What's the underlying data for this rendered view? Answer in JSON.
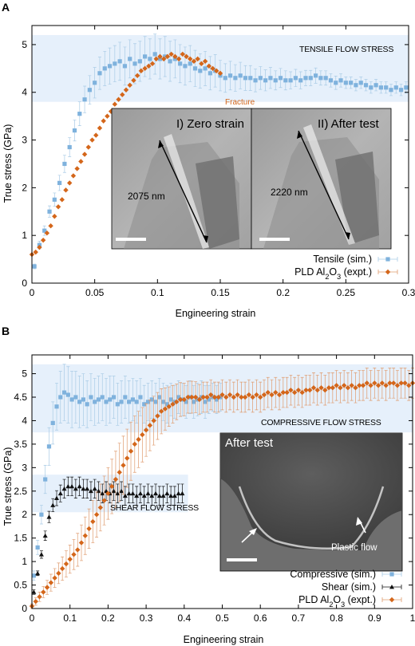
{
  "colors": {
    "sim_blue": "#7fb2dd",
    "sim_blue_err": "#a9cbe6",
    "expt_orange": "#d4661a",
    "expt_orange_err": "#df9b6e",
    "shear_black": "#111111",
    "band": "#e6f0fb"
  },
  "icons": {
    "tensile_marker": "square",
    "expt_marker": "diamond",
    "shear_marker": "triangle"
  },
  "chart_data": [
    {
      "type": "scatter",
      "panel": "A",
      "xlabel": "Engineering strain",
      "ylabel": "True stress (GPa)",
      "xlim": [
        0,
        0.3
      ],
      "ylim": [
        0,
        5.4
      ],
      "xticks": [
        "0",
        "0.05",
        "0.1",
        "0.15",
        "0.2",
        "0.25",
        "0.3"
      ],
      "yticks": [
        "0",
        "1",
        "2",
        "3",
        "4",
        "5"
      ],
      "band": {
        "label": "TENSILE FLOW STRESS",
        "ylow": 3.8,
        "yhigh": 5.2
      },
      "annotation": {
        "text": "Fracture",
        "x": 0.15,
        "y": 3.9
      },
      "legend": [
        "Tensile (sim.)",
        "PLD Al2O3 (expt.)"
      ],
      "legend_placement": "bottom-right",
      "inset": {
        "left_label": "I) Zero strain",
        "right_label": "II) After test",
        "left_length": "2075 nm",
        "right_length": "2220 nm"
      },
      "series": [
        {
          "name": "Tensile (sim.)",
          "marker": "square",
          "x": [
            0.002,
            0.006,
            0.01,
            0.014,
            0.018,
            0.022,
            0.026,
            0.03,
            0.034,
            0.038,
            0.042,
            0.046,
            0.05,
            0.054,
            0.058,
            0.062,
            0.066,
            0.07,
            0.074,
            0.078,
            0.082,
            0.086,
            0.09,
            0.094,
            0.098,
            0.102,
            0.106,
            0.11,
            0.114,
            0.118,
            0.122,
            0.126,
            0.13,
            0.134,
            0.138,
            0.142,
            0.146,
            0.15,
            0.154,
            0.158,
            0.162,
            0.166,
            0.17,
            0.174,
            0.178,
            0.182,
            0.186,
            0.19,
            0.194,
            0.198,
            0.202,
            0.206,
            0.21,
            0.214,
            0.218,
            0.222,
            0.226,
            0.23,
            0.234,
            0.238,
            0.242,
            0.246,
            0.25,
            0.254,
            0.258,
            0.262,
            0.266,
            0.27,
            0.274,
            0.278,
            0.282,
            0.286,
            0.29,
            0.294,
            0.298
          ],
          "y": [
            0.35,
            0.8,
            1.1,
            1.5,
            1.75,
            2.1,
            2.5,
            2.85,
            3.2,
            3.55,
            3.85,
            4.05,
            4.2,
            4.4,
            4.5,
            4.55,
            4.6,
            4.65,
            4.55,
            4.7,
            4.6,
            4.65,
            4.75,
            4.7,
            4.8,
            4.7,
            4.75,
            4.65,
            4.7,
            4.6,
            4.55,
            4.6,
            4.5,
            4.45,
            4.5,
            4.4,
            4.45,
            4.35,
            4.3,
            4.35,
            4.3,
            4.35,
            4.3,
            4.3,
            4.25,
            4.3,
            4.25,
            4.3,
            4.25,
            4.3,
            4.25,
            4.25,
            4.3,
            4.25,
            4.3,
            4.3,
            4.35,
            4.3,
            4.3,
            4.25,
            4.2,
            4.25,
            4.2,
            4.2,
            4.15,
            4.2,
            4.15,
            4.1,
            4.15,
            4.1,
            4.1,
            4.05,
            4.1,
            4.05,
            4.1
          ],
          "err": [
            0.05,
            0.08,
            0.1,
            0.12,
            0.14,
            0.16,
            0.18,
            0.2,
            0.22,
            0.25,
            0.28,
            0.3,
            0.32,
            0.34,
            0.36,
            0.38,
            0.38,
            0.4,
            0.4,
            0.4,
            0.42,
            0.42,
            0.42,
            0.42,
            0.42,
            0.42,
            0.42,
            0.42,
            0.4,
            0.4,
            0.4,
            0.38,
            0.38,
            0.36,
            0.36,
            0.35,
            0.34,
            0.32,
            0.3,
            0.3,
            0.28,
            0.28,
            0.26,
            0.26,
            0.24,
            0.24,
            0.22,
            0.22,
            0.2,
            0.2,
            0.2,
            0.18,
            0.18,
            0.18,
            0.16,
            0.16,
            0.16,
            0.15,
            0.15,
            0.14,
            0.14,
            0.14,
            0.12,
            0.12,
            0.12,
            0.12,
            0.12,
            0.12,
            0.12,
            0.12,
            0.12,
            0.12,
            0.12,
            0.12,
            0.12
          ]
        },
        {
          "name": "PLD Al2O3 (expt.)",
          "marker": "diamond",
          "x": [
            0.0,
            0.003,
            0.006,
            0.009,
            0.012,
            0.015,
            0.018,
            0.021,
            0.024,
            0.027,
            0.03,
            0.033,
            0.036,
            0.039,
            0.042,
            0.045,
            0.048,
            0.051,
            0.054,
            0.057,
            0.06,
            0.063,
            0.066,
            0.069,
            0.072,
            0.075,
            0.078,
            0.081,
            0.084,
            0.087,
            0.09,
            0.093,
            0.096,
            0.099,
            0.102,
            0.105,
            0.108,
            0.111,
            0.114,
            0.117,
            0.12,
            0.123,
            0.126,
            0.129,
            0.132,
            0.135,
            0.138,
            0.141,
            0.144,
            0.147,
            0.15
          ],
          "y": [
            0.6,
            0.65,
            0.75,
            0.9,
            1.05,
            1.2,
            1.4,
            1.6,
            1.75,
            1.95,
            2.1,
            2.25,
            2.4,
            2.55,
            2.7,
            2.85,
            3.0,
            3.1,
            3.25,
            3.4,
            3.5,
            3.6,
            3.75,
            3.85,
            3.95,
            4.05,
            4.15,
            4.25,
            4.35,
            4.45,
            4.5,
            4.55,
            4.6,
            4.7,
            4.75,
            4.7,
            4.75,
            4.8,
            4.75,
            4.7,
            4.8,
            4.75,
            4.7,
            4.65,
            4.7,
            4.6,
            4.65,
            4.55,
            4.5,
            4.45,
            4.4
          ]
        }
      ]
    },
    {
      "type": "scatter",
      "panel": "B",
      "xlabel": "Engineering strain",
      "ylabel": "True stress (GPa)",
      "xlim": [
        0,
        1
      ],
      "ylim": [
        0,
        5.4
      ],
      "xticks": [
        "0",
        "0.1",
        "0.2",
        "0.3",
        "0.4",
        "0.5",
        "0.6",
        "0.7",
        "0.8",
        "0.9",
        "1"
      ],
      "yticks": [
        "0",
        "0.5",
        "1",
        "1.5",
        "2",
        "2.5",
        "3",
        "3.5",
        "4",
        "4.5",
        "5"
      ],
      "bands": [
        {
          "label": "COMPRESSIVE FLOW STRESS",
          "ylow": 3.75,
          "yhigh": 5.2,
          "xmin": 0.0,
          "xmax": 1.0
        },
        {
          "label": "SHEAR FLOW STRESS",
          "ylow": 2.05,
          "yhigh": 2.85,
          "xmin": 0.0,
          "xmax": 0.41
        }
      ],
      "legend": [
        "Compressive (sim.)",
        "Shear (sim.)",
        "PLD Al2O3 (expt.)"
      ],
      "legend_placement": "bottom-right",
      "inset": {
        "title": "After test",
        "note": "Plastic flow"
      },
      "series": [
        {
          "name": "Compressive (sim.)",
          "marker": "square",
          "x": [
            0.005,
            0.015,
            0.025,
            0.035,
            0.045,
            0.055,
            0.065,
            0.075,
            0.085,
            0.095,
            0.105,
            0.115,
            0.125,
            0.135,
            0.145,
            0.155,
            0.165,
            0.175,
            0.185,
            0.195,
            0.205,
            0.215,
            0.225,
            0.235,
            0.245,
            0.255,
            0.265,
            0.275,
            0.285,
            0.295,
            0.305,
            0.315,
            0.325,
            0.335,
            0.345,
            0.355,
            0.365,
            0.375,
            0.385,
            0.395,
            0.405,
            0.415,
            0.425,
            0.435,
            0.445,
            0.455,
            0.465,
            0.475,
            0.485,
            0.495
          ],
          "y": [
            0.7,
            1.3,
            2.0,
            2.75,
            3.45,
            3.95,
            4.3,
            4.5,
            4.6,
            4.55,
            4.45,
            4.5,
            4.4,
            4.45,
            4.35,
            4.5,
            4.4,
            4.45,
            4.5,
            4.4,
            4.45,
            4.5,
            4.35,
            4.4,
            4.5,
            4.4,
            4.45,
            4.4,
            4.5,
            4.35,
            4.4,
            4.45,
            4.4,
            4.5,
            4.4,
            4.35,
            4.45,
            4.4,
            4.5,
            4.45,
            4.4,
            4.5,
            4.4,
            4.45,
            4.5,
            4.4,
            4.45,
            4.5,
            4.45,
            4.5
          ],
          "err": [
            0.1,
            0.15,
            0.2,
            0.3,
            0.4,
            0.45,
            0.5,
            0.55,
            0.6,
            0.6,
            0.6,
            0.55,
            0.55,
            0.55,
            0.5,
            0.5,
            0.5,
            0.5,
            0.5,
            0.5,
            0.5,
            0.45,
            0.45,
            0.45,
            0.45,
            0.45,
            0.45,
            0.45,
            0.4,
            0.4,
            0.4,
            0.4,
            0.4,
            0.4,
            0.4,
            0.4,
            0.35,
            0.35,
            0.35,
            0.35,
            0.35,
            0.35,
            0.35,
            0.35,
            0.35,
            0.35,
            0.3,
            0.3,
            0.3,
            0.3
          ]
        },
        {
          "name": "Shear (sim.)",
          "marker": "triangle",
          "x": [
            0.005,
            0.015,
            0.025,
            0.035,
            0.045,
            0.055,
            0.065,
            0.075,
            0.085,
            0.095,
            0.105,
            0.115,
            0.125,
            0.135,
            0.145,
            0.155,
            0.165,
            0.175,
            0.185,
            0.195,
            0.205,
            0.215,
            0.225,
            0.235,
            0.245,
            0.255,
            0.265,
            0.275,
            0.285,
            0.295,
            0.305,
            0.315,
            0.325,
            0.335,
            0.345,
            0.355,
            0.365,
            0.375,
            0.385,
            0.395
          ],
          "y": [
            0.35,
            0.75,
            1.15,
            1.55,
            1.95,
            2.2,
            2.35,
            2.45,
            2.55,
            2.6,
            2.6,
            2.55,
            2.6,
            2.55,
            2.55,
            2.5,
            2.55,
            2.5,
            2.45,
            2.5,
            2.45,
            2.5,
            2.45,
            2.5,
            2.4,
            2.45,
            2.45,
            2.4,
            2.45,
            2.4,
            2.45,
            2.4,
            2.45,
            2.4,
            2.4,
            2.45,
            2.4,
            2.4,
            2.45,
            2.45
          ],
          "err": [
            0.05,
            0.05,
            0.08,
            0.1,
            0.12,
            0.14,
            0.16,
            0.18,
            0.2,
            0.2,
            0.2,
            0.2,
            0.2,
            0.2,
            0.2,
            0.2,
            0.2,
            0.2,
            0.2,
            0.2,
            0.2,
            0.2,
            0.2,
            0.2,
            0.2,
            0.2,
            0.2,
            0.2,
            0.2,
            0.2,
            0.2,
            0.2,
            0.2,
            0.2,
            0.2,
            0.2,
            0.2,
            0.2,
            0.2,
            0.2
          ]
        },
        {
          "name": "PLD Al2O3 (expt.)",
          "marker": "diamond",
          "x": [
            0.0,
            0.01,
            0.02,
            0.03,
            0.04,
            0.05,
            0.06,
            0.07,
            0.08,
            0.09,
            0.1,
            0.11,
            0.12,
            0.13,
            0.14,
            0.15,
            0.16,
            0.17,
            0.18,
            0.19,
            0.2,
            0.21,
            0.22,
            0.23,
            0.24,
            0.25,
            0.26,
            0.27,
            0.28,
            0.29,
            0.3,
            0.31,
            0.32,
            0.33,
            0.34,
            0.35,
            0.36,
            0.37,
            0.38,
            0.39,
            0.4,
            0.41,
            0.42,
            0.43,
            0.44,
            0.45,
            0.46,
            0.47,
            0.48,
            0.49,
            0.5,
            0.51,
            0.52,
            0.53,
            0.54,
            0.55,
            0.56,
            0.57,
            0.58,
            0.59,
            0.6,
            0.61,
            0.62,
            0.63,
            0.64,
            0.65,
            0.66,
            0.67,
            0.68,
            0.69,
            0.7,
            0.71,
            0.72,
            0.73,
            0.74,
            0.75,
            0.76,
            0.77,
            0.78,
            0.79,
            0.8,
            0.81,
            0.82,
            0.83,
            0.84,
            0.85,
            0.86,
            0.87,
            0.88,
            0.89,
            0.9,
            0.91,
            0.92,
            0.93,
            0.94,
            0.95,
            0.96,
            0.97,
            0.98,
            0.99,
            1.0
          ],
          "y": [
            0.05,
            0.15,
            0.25,
            0.35,
            0.45,
            0.55,
            0.65,
            0.75,
            0.85,
            0.95,
            1.05,
            1.15,
            1.25,
            1.4,
            1.55,
            1.7,
            1.85,
            2.0,
            2.15,
            2.3,
            2.45,
            2.6,
            2.75,
            2.9,
            3.05,
            3.2,
            3.35,
            3.5,
            3.6,
            3.7,
            3.8,
            3.9,
            4.0,
            4.1,
            4.2,
            4.25,
            4.3,
            4.35,
            4.4,
            4.45,
            4.45,
            4.5,
            4.5,
            4.5,
            4.45,
            4.5,
            4.5,
            4.55,
            4.5,
            4.5,
            4.55,
            4.5,
            4.55,
            4.5,
            4.55,
            4.5,
            4.5,
            4.55,
            4.5,
            4.55,
            4.5,
            4.55,
            4.6,
            4.55,
            4.6,
            4.55,
            4.6,
            4.6,
            4.65,
            4.6,
            4.65,
            4.6,
            4.65,
            4.65,
            4.7,
            4.65,
            4.7,
            4.65,
            4.7,
            4.7,
            4.75,
            4.7,
            4.75,
            4.7,
            4.75,
            4.7,
            4.75,
            4.75,
            4.8,
            4.75,
            4.8,
            4.75,
            4.8,
            4.75,
            4.8,
            4.8,
            4.75,
            4.8,
            4.8,
            4.75,
            4.8
          ],
          "err": [
            0.05,
            0.08,
            0.1,
            0.12,
            0.15,
            0.18,
            0.2,
            0.22,
            0.25,
            0.28,
            0.3,
            0.32,
            0.35,
            0.38,
            0.4,
            0.42,
            0.45,
            0.48,
            0.5,
            0.52,
            0.55,
            0.58,
            0.6,
            0.62,
            0.62,
            0.62,
            0.62,
            0.6,
            0.6,
            0.58,
            0.56,
            0.54,
            0.52,
            0.5,
            0.48,
            0.45,
            0.42,
            0.4,
            0.38,
            0.36,
            0.35,
            0.34,
            0.34,
            0.33,
            0.32,
            0.32,
            0.32,
            0.32,
            0.32,
            0.32,
            0.32,
            0.32,
            0.32,
            0.32,
            0.32,
            0.32,
            0.32,
            0.32,
            0.32,
            0.32,
            0.32,
            0.32,
            0.32,
            0.32,
            0.32,
            0.32,
            0.32,
            0.32,
            0.32,
            0.32,
            0.32,
            0.32,
            0.32,
            0.32,
            0.32,
            0.32,
            0.32,
            0.32,
            0.32,
            0.32,
            0.32,
            0.32,
            0.32,
            0.32,
            0.32,
            0.32,
            0.32,
            0.32,
            0.32,
            0.32,
            0.32,
            0.32,
            0.32,
            0.32,
            0.32,
            0.32,
            0.32,
            0.32,
            0.32,
            0.32,
            0.32
          ]
        }
      ]
    }
  ]
}
